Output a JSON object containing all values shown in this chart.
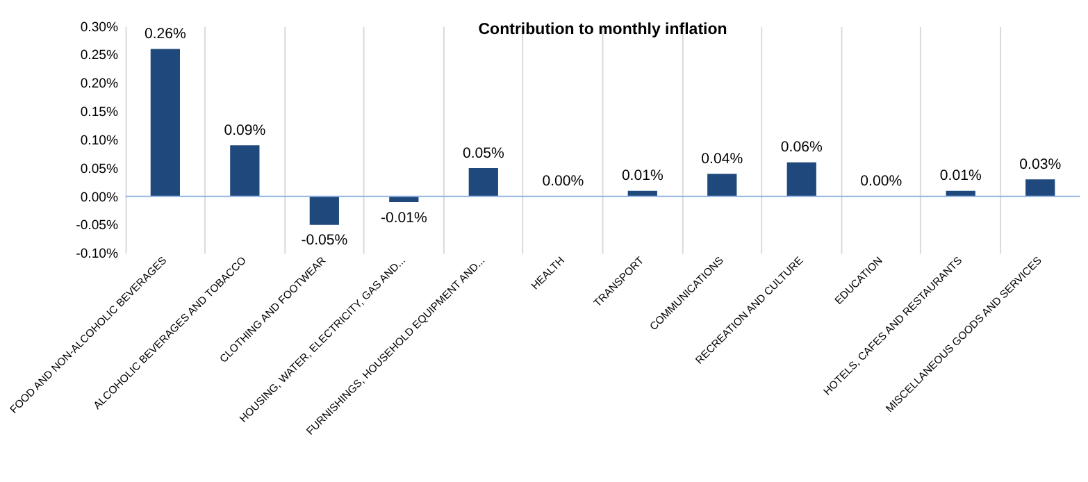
{
  "chart_data": {
    "type": "bar",
    "title": "Contribution to monthly inflation",
    "categories": [
      "FOOD AND NON-ALCOHOLIC BEVERAGES",
      "ALCOHOLIC BEVERAGES AND  TOBACCO",
      "CLOTHING AND FOOTWEAR",
      "HOUSING, WATER, ELECTRICITY, GAS AND...",
      "FURNISHINGS, HOUSEHOLD EQUIPMENT AND...",
      "HEALTH",
      "TRANSPORT",
      "COMMUNICATIONS",
      "RECREATION AND CULTURE",
      "EDUCATION",
      "HOTELS, CAFES AND RESTAURANTS",
      "MISCELLANEOUS GOODS AND SERVICES"
    ],
    "values": [
      0.26,
      0.09,
      -0.05,
      -0.01,
      0.05,
      0.0,
      0.01,
      0.04,
      0.06,
      0.0,
      0.01,
      0.03
    ],
    "value_labels": [
      "0.26%",
      "0.09%",
      "-0.05%",
      "-0.01%",
      "0.05%",
      "0.00%",
      "0.01%",
      "0.04%",
      "0.06%",
      "0.00%",
      "0.01%",
      "0.03%"
    ],
    "color": "#1f497d",
    "ylim": [
      -0.1,
      0.3
    ],
    "yticks": [
      {
        "value": -0.1,
        "label": "-0.10%"
      },
      {
        "value": -0.05,
        "label": "-0.05%"
      },
      {
        "value": 0.0,
        "label": "0.00%"
      },
      {
        "value": 0.05,
        "label": "0.05%"
      },
      {
        "value": 0.1,
        "label": "0.10%"
      },
      {
        "value": 0.15,
        "label": "0.15%"
      },
      {
        "value": 0.2,
        "label": "0.20%"
      },
      {
        "value": 0.25,
        "label": "0.25%"
      },
      {
        "value": 0.3,
        "label": "0.30%"
      }
    ],
    "ref_lines": [
      {
        "axis": "y",
        "value": 0,
        "color": "#8eb4e3"
      }
    ],
    "grid": "x"
  }
}
